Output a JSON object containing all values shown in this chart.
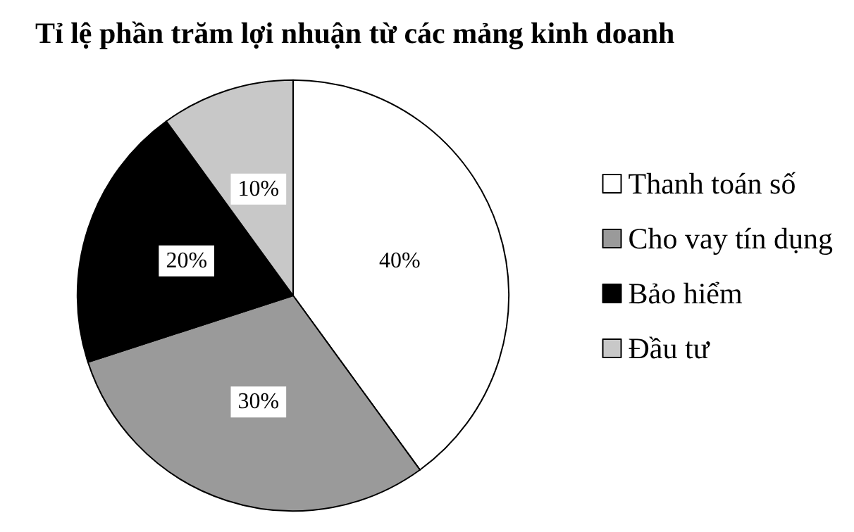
{
  "chart_data": {
    "type": "pie",
    "title": "Tỉ lệ phần trăm lợi nhuận từ các mảng kinh doanh",
    "categories": [
      "Thanh toán số",
      "Cho vay tín dụng",
      "Bảo hiểm",
      "Đầu tư"
    ],
    "values": [
      40,
      30,
      20,
      10
    ],
    "colors": [
      "#ffffff",
      "#9a9a9a",
      "#000000",
      "#c8c8c8"
    ],
    "value_labels": [
      "40%",
      "30%",
      "20%",
      "10%"
    ],
    "legend": "right"
  }
}
